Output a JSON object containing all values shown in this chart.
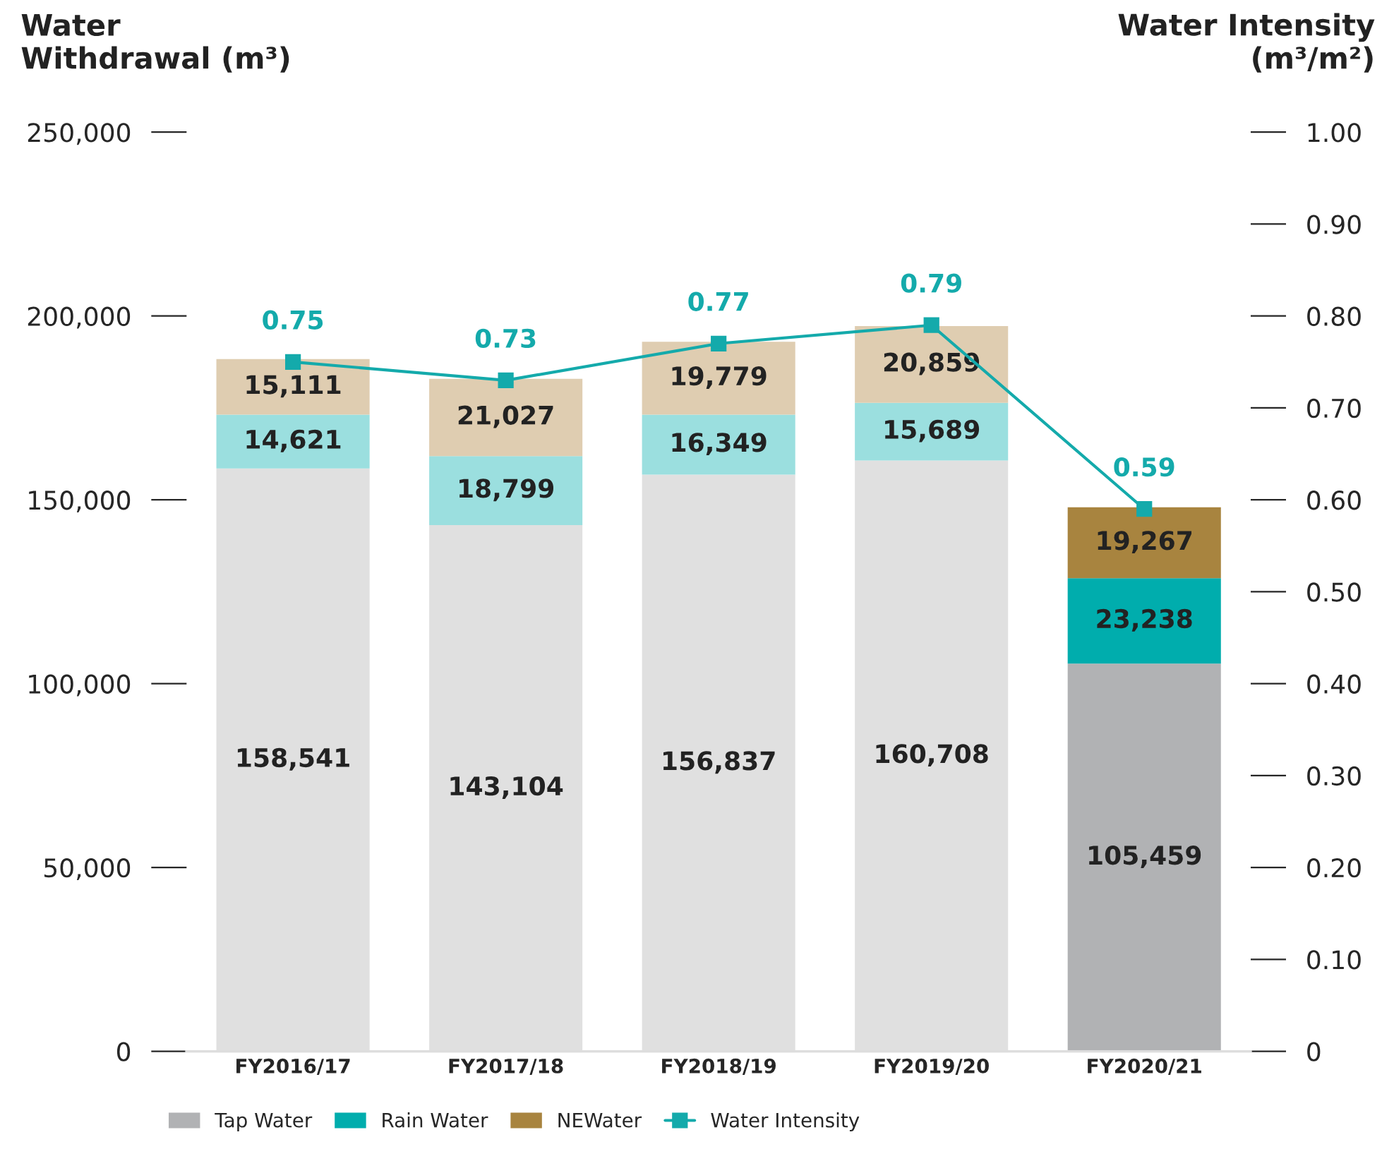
{
  "chart_data": {
    "type": "bar",
    "stacked": true,
    "ylabel": "Water\nWithdrawal (m³)",
    "y2label": "Water Intensity\n(m³/m²)",
    "categories": [
      "FY2016/17",
      "FY2017/18",
      "FY2018/19",
      "FY2019/20",
      "FY2020/21"
    ],
    "ylim": [
      0,
      250000
    ],
    "yticks": [
      {
        "value": 0,
        "label": "0"
      },
      {
        "value": 50000,
        "label": "50,000"
      },
      {
        "value": 100000,
        "label": "100,000"
      },
      {
        "value": 150000,
        "label": "150,000"
      },
      {
        "value": 200000,
        "label": "200,000"
      },
      {
        "value": 250000,
        "label": "250,000"
      }
    ],
    "y2lim": [
      0,
      1.0
    ],
    "y2ticks": [
      {
        "value": 0,
        "label": "0"
      },
      {
        "value": 0.1,
        "label": "0.10"
      },
      {
        "value": 0.2,
        "label": "0.20"
      },
      {
        "value": 0.3,
        "label": "0.30"
      },
      {
        "value": 0.4,
        "label": "0.40"
      },
      {
        "value": 0.5,
        "label": "0.50"
      },
      {
        "value": 0.6,
        "label": "0.60"
      },
      {
        "value": 0.7,
        "label": "0.70"
      },
      {
        "value": 0.8,
        "label": "0.80"
      },
      {
        "value": 0.9,
        "label": "0.90"
      },
      {
        "value": 1.0,
        "label": "1.00"
      }
    ],
    "grid": false,
    "legend": "bottom",
    "series": [
      {
        "name": "Tap Water",
        "color": "#b1b2b4",
        "colors": [
          "#e0e0e0",
          "#e0e0e0",
          "#e0e0e0",
          "#e0e0e0",
          "#b1b2b4"
        ],
        "values": [
          158541,
          143104,
          156837,
          160708,
          105459
        ],
        "value_labels": [
          "158,541",
          "143,104",
          "156,837",
          "160,708",
          "105,459"
        ]
      },
      {
        "name": "Rain Water",
        "color": "#00adad",
        "colors": [
          "#9bdfdf",
          "#9bdfdf",
          "#9bdfdf",
          "#9bdfdf",
          "#00adad"
        ],
        "values": [
          14621,
          18799,
          16349,
          15689,
          23238
        ],
        "value_labels": [
          "14,621",
          "18,799",
          "16,349",
          "15,689",
          "23,238"
        ]
      },
      {
        "name": "NEWater",
        "color": "#a8843f",
        "colors": [
          "#dfcdb1",
          "#dfcdb1",
          "#dfcdb1",
          "#dfcdb1",
          "#a8843f"
        ],
        "values": [
          15111,
          21027,
          19779,
          20859,
          19267
        ],
        "value_labels": [
          "15,111",
          "21,027",
          "19,779",
          "20,859",
          "19,267"
        ]
      },
      {
        "name": "Water Intensity",
        "type": "line",
        "axis": "y2",
        "color": "#14aaab",
        "marker": "square",
        "values": [
          0.75,
          0.73,
          0.77,
          0.79,
          0.59
        ],
        "value_labels": [
          "0.75",
          "0.73",
          "0.77",
          "0.79",
          "0.59"
        ]
      }
    ]
  }
}
